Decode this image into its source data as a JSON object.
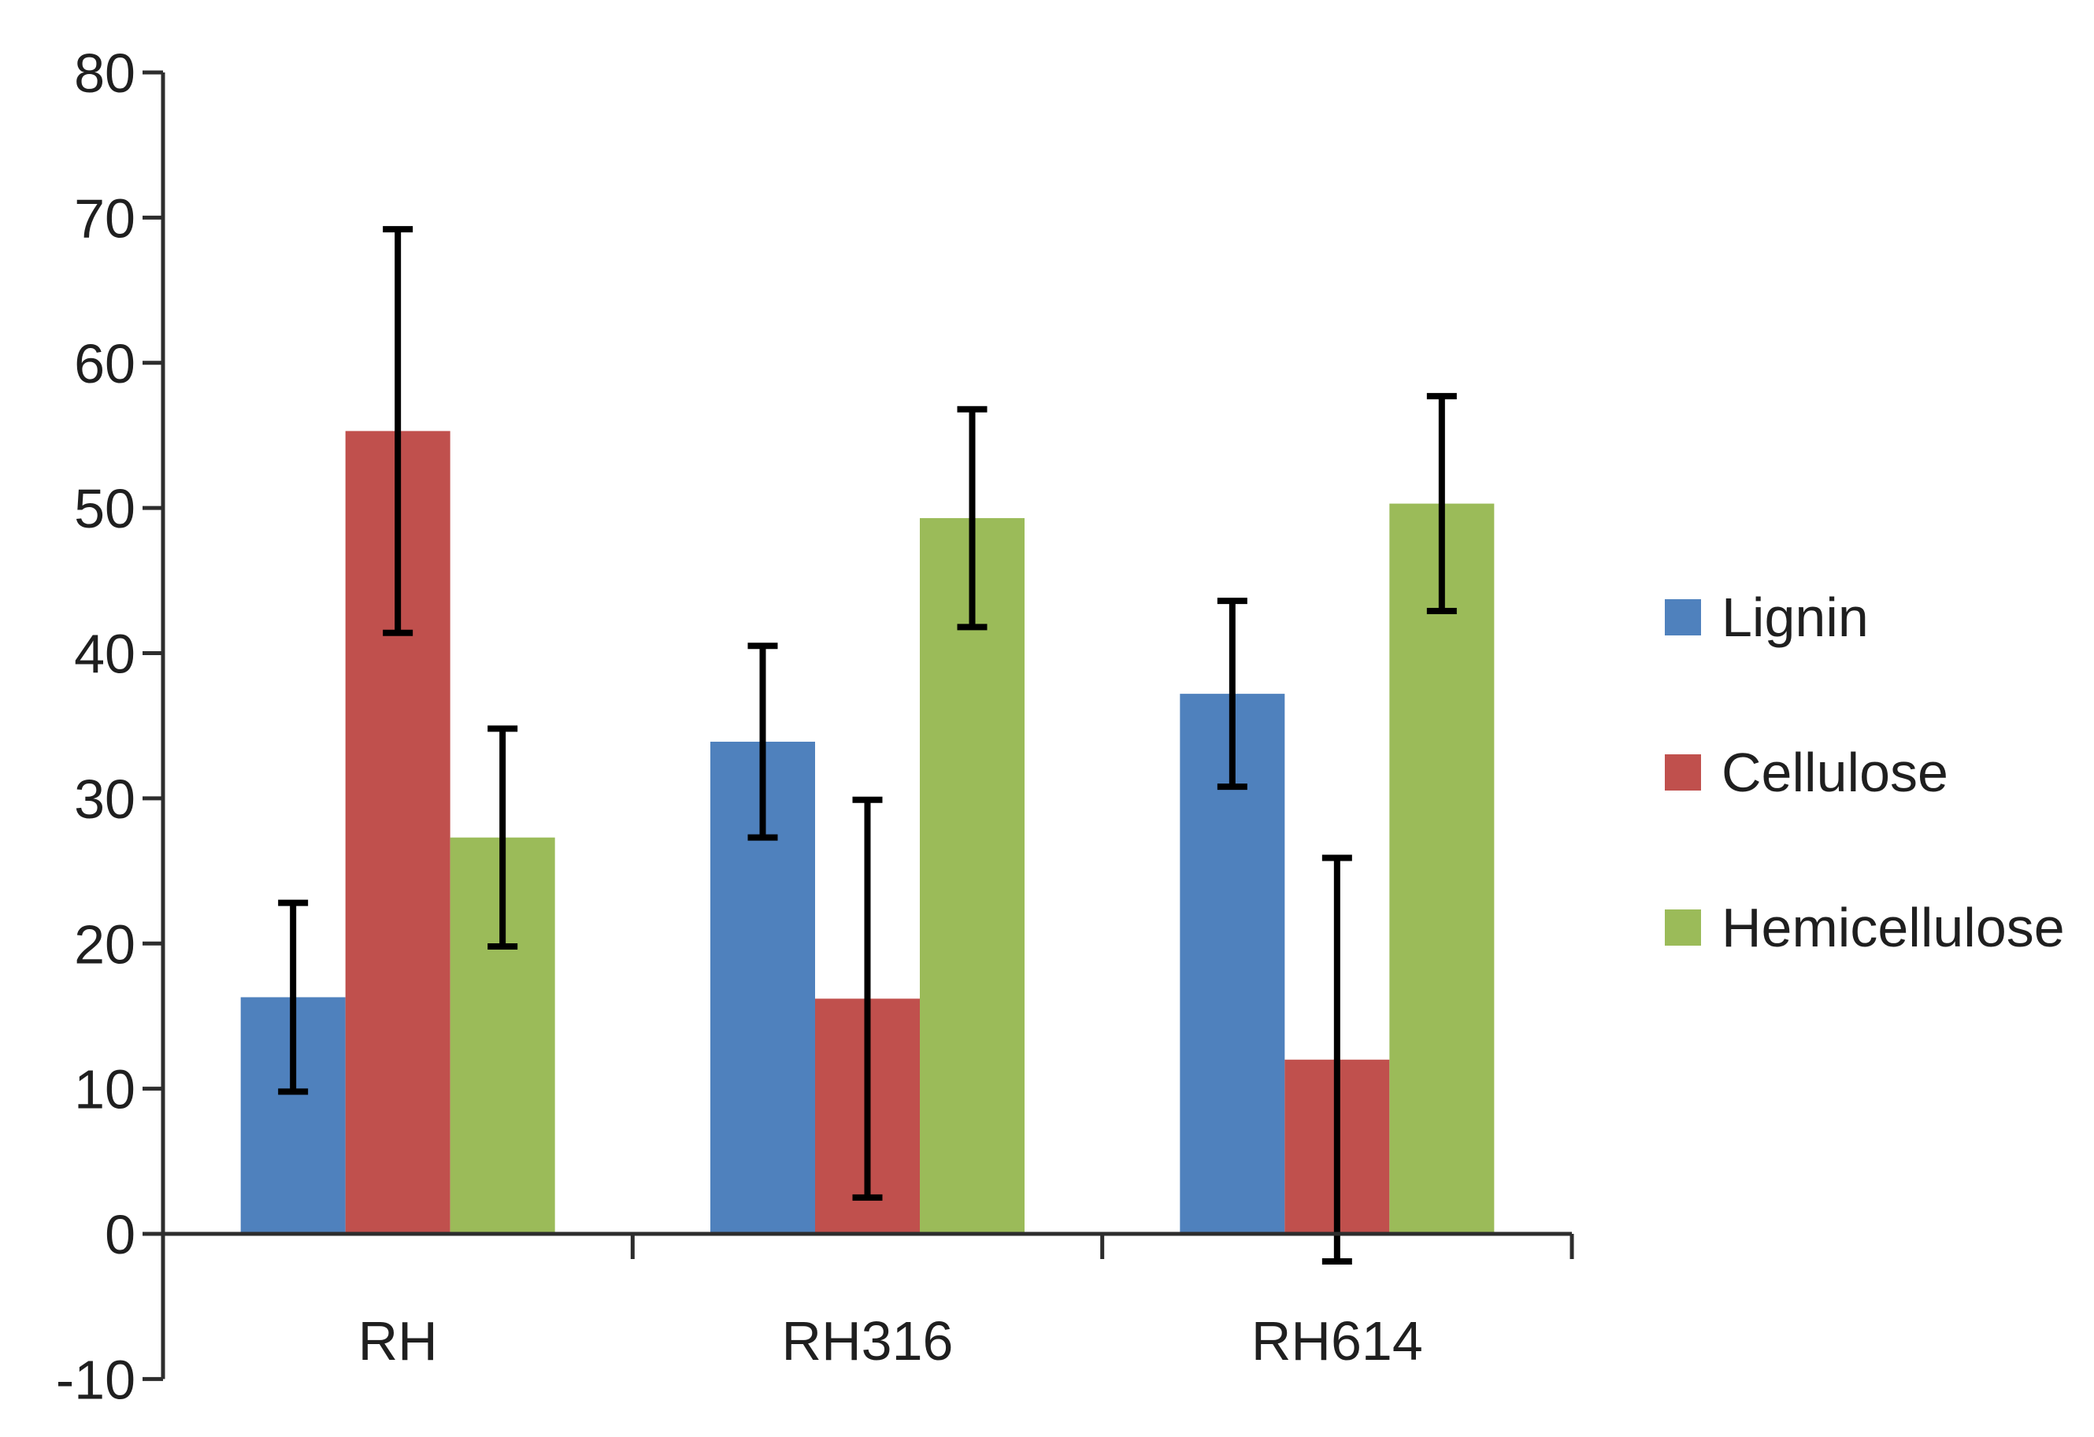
{
  "page": {
    "background": "#ffffff"
  },
  "chart_data": {
    "type": "bar",
    "title": "",
    "xlabel": "",
    "ylabel": "",
    "categories": [
      "RH",
      "RH316",
      "RH614"
    ],
    "series": [
      {
        "name": "Lignin",
        "color": "#4F81BD",
        "values": [
          16.3,
          33.9,
          37.2
        ],
        "errors": [
          6.5,
          6.6,
          6.4
        ]
      },
      {
        "name": "Cellulose",
        "color": "#C0504D",
        "values": [
          55.3,
          16.2,
          12.0
        ],
        "errors": [
          13.9,
          13.7,
          13.9
        ]
      },
      {
        "name": "Hemicellulose",
        "color": "#9BBB59",
        "values": [
          27.3,
          49.3,
          50.3
        ],
        "errors": [
          7.5,
          7.5,
          7.4
        ]
      }
    ],
    "ylim": [
      -10,
      80
    ],
    "ytick_step": 10,
    "ytick_labels": [
      "-10",
      "0",
      "10",
      "20",
      "30",
      "40",
      "50",
      "60",
      "70",
      "80"
    ],
    "grid": false,
    "legend_position": "right",
    "error_bars": true,
    "error_bar_color": "#000000",
    "axis_color": "#2d2d2d",
    "text_color": "#1f1f1f"
  }
}
